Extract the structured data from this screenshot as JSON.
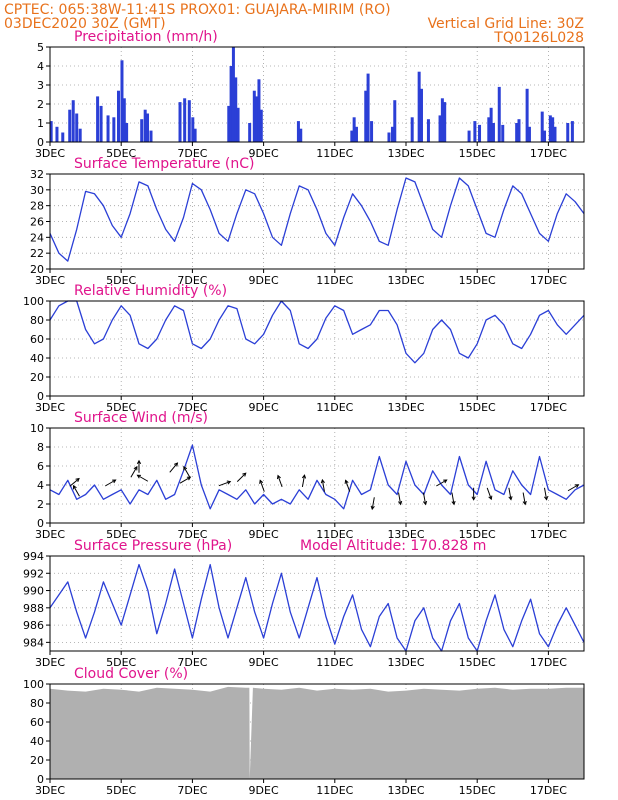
{
  "header": {
    "left_line1": "CPTEC:   065:38W-11:41S   PROX01: GUAJARA-MIRIM (RO)",
    "left_line2": "03DEC2020 30Z (GMT)",
    "right_line1": "Vertical Grid Line: 30Z",
    "right_line2": "TQ0126L028"
  },
  "colors": {
    "header": "#e8721c",
    "titles": "#e0148c",
    "series": "#2b3fd6",
    "cloud": "#b0b0b0",
    "wind_arrow": "#000000"
  },
  "x_axis": {
    "days": 15,
    "tick_days": [
      0,
      2,
      4,
      6,
      8,
      10,
      12,
      14
    ],
    "tick_labels": [
      "3DEC",
      "5DEC",
      "7DEC",
      "9DEC",
      "11DEC",
      "13DEC",
      "15DEC",
      "17DEC"
    ]
  },
  "chart_data": [
    {
      "type": "bar",
      "title": "Precipitation (mm/h)",
      "ylim": [
        0,
        5
      ],
      "yticks": [
        0,
        1,
        2,
        3,
        4,
        5
      ],
      "bars": [
        [
          0.05,
          1.1
        ],
        [
          0.3,
          0.8
        ],
        [
          0.55,
          0.5
        ],
        [
          0.85,
          1.7
        ],
        [
          1.0,
          2.2
        ],
        [
          1.15,
          1.5
        ],
        [
          1.3,
          0.7
        ],
        [
          2.05,
          2.4
        ],
        [
          2.2,
          1.9
        ],
        [
          2.5,
          1.4
        ],
        [
          2.75,
          1.3
        ],
        [
          2.95,
          2.7
        ],
        [
          3.1,
          4.3
        ],
        [
          3.2,
          2.3
        ],
        [
          3.3,
          1.0
        ],
        [
          3.95,
          1.2
        ],
        [
          4.1,
          1.7
        ],
        [
          4.2,
          1.5
        ],
        [
          4.35,
          0.6
        ],
        [
          5.6,
          2.1
        ],
        [
          5.8,
          2.3
        ],
        [
          6.0,
          2.2
        ],
        [
          6.15,
          1.3
        ],
        [
          6.25,
          0.7
        ],
        [
          7.7,
          1.9
        ],
        [
          7.8,
          4.0
        ],
        [
          7.9,
          5.0
        ],
        [
          8.0,
          3.4
        ],
        [
          8.1,
          1.8
        ],
        [
          8.6,
          1.0
        ],
        [
          8.8,
          2.7
        ],
        [
          8.9,
          2.4
        ],
        [
          9.0,
          3.3
        ],
        [
          9.1,
          1.7
        ],
        [
          10.7,
          1.1
        ],
        [
          10.8,
          0.7
        ],
        [
          13.0,
          0.6
        ],
        [
          13.1,
          1.3
        ],
        [
          13.2,
          0.8
        ],
        [
          13.6,
          2.7
        ],
        [
          13.7,
          3.6
        ],
        [
          13.85,
          1.1
        ],
        [
          14.6,
          0.5
        ],
        [
          14.75,
          0.8
        ],
        [
          14.85,
          2.2
        ],
        [
          15.6,
          1.3
        ],
        [
          15.9,
          3.7
        ],
        [
          16.0,
          2.8
        ],
        [
          16.3,
          1.2
        ],
        [
          16.8,
          1.4
        ],
        [
          16.9,
          2.3
        ],
        [
          17.0,
          2.1
        ],
        [
          18.05,
          0.6
        ],
        [
          18.3,
          1.1
        ],
        [
          18.5,
          0.9
        ],
        [
          18.9,
          1.3
        ],
        [
          19.0,
          1.8
        ],
        [
          19.1,
          1.0
        ],
        [
          19.35,
          2.9
        ],
        [
          19.5,
          0.9
        ],
        [
          20.1,
          1.0
        ],
        [
          20.2,
          1.2
        ],
        [
          20.55,
          2.8
        ],
        [
          20.65,
          0.8
        ],
        [
          21.2,
          1.6
        ],
        [
          21.3,
          0.6
        ],
        [
          21.55,
          1.4
        ],
        [
          21.65,
          1.3
        ],
        [
          21.75,
          0.8
        ],
        [
          22.3,
          1.0
        ],
        [
          22.5,
          1.1
        ]
      ]
    },
    {
      "type": "line",
      "title": "Surface Temperature (nC)",
      "ylim": [
        20,
        32
      ],
      "yticks": [
        20,
        22,
        24,
        26,
        28,
        30,
        32
      ],
      "x": [
        0,
        0.25,
        0.5,
        0.75,
        1,
        1.25,
        1.5,
        1.75,
        2,
        2.25,
        2.5,
        2.75,
        3,
        3.25,
        3.5,
        3.75,
        4,
        4.25,
        4.5,
        4.75,
        5,
        5.25,
        5.5,
        5.75,
        6,
        6.25,
        6.5,
        6.75,
        7,
        7.25,
        7.5,
        7.75,
        8,
        8.25,
        8.5,
        8.75,
        9,
        9.25,
        9.5,
        9.75,
        10,
        10.25,
        10.5,
        10.75,
        11,
        11.25,
        11.5,
        11.75,
        12,
        12.25,
        12.5,
        12.75,
        13,
        13.25,
        13.5,
        13.75,
        14,
        14.25,
        14.5,
        14.75,
        15
      ],
      "values": [
        24.5,
        22.0,
        21.0,
        25.0,
        29.8,
        29.5,
        28.0,
        25.5,
        24.0,
        27.0,
        31.0,
        30.5,
        27.5,
        25.0,
        23.5,
        26.5,
        30.8,
        30.0,
        27.5,
        24.5,
        23.5,
        27.0,
        30.0,
        29.5,
        27.0,
        24.0,
        23.0,
        27.0,
        30.5,
        30.0,
        27.5,
        24.5,
        23.0,
        26.5,
        29.5,
        28.0,
        26.0,
        23.5,
        23.0,
        27.5,
        31.5,
        31.0,
        28.0,
        25.0,
        24.0,
        28.0,
        31.5,
        30.5,
        27.5,
        24.5,
        24.0,
        27.5,
        30.5,
        29.5,
        27.0,
        24.5,
        23.5,
        27.0,
        29.5,
        28.5,
        27.0
      ]
    },
    {
      "type": "line",
      "title": "Relative Humidity (%)",
      "ylim": [
        0,
        100
      ],
      "yticks": [
        0,
        20,
        40,
        60,
        80,
        100
      ],
      "x": [
        0,
        0.25,
        0.5,
        0.75,
        1,
        1.25,
        1.5,
        1.75,
        2,
        2.25,
        2.5,
        2.75,
        3,
        3.25,
        3.5,
        3.75,
        4,
        4.25,
        4.5,
        4.75,
        5,
        5.25,
        5.5,
        5.75,
        6,
        6.25,
        6.5,
        6.75,
        7,
        7.25,
        7.5,
        7.75,
        8,
        8.25,
        8.5,
        8.75,
        9,
        9.25,
        9.5,
        9.75,
        10,
        10.25,
        10.5,
        10.75,
        11,
        11.25,
        11.5,
        11.75,
        12,
        12.25,
        12.5,
        12.75,
        13,
        13.25,
        13.5,
        13.75,
        14,
        14.25,
        14.5,
        14.75,
        15
      ],
      "values": [
        80,
        95,
        100,
        100,
        70,
        55,
        60,
        80,
        95,
        85,
        55,
        50,
        60,
        80,
        95,
        90,
        55,
        50,
        60,
        80,
        95,
        92,
        60,
        55,
        65,
        85,
        100,
        90,
        55,
        50,
        60,
        82,
        95,
        90,
        65,
        70,
        75,
        90,
        90,
        75,
        45,
        35,
        45,
        70,
        80,
        70,
        45,
        40,
        55,
        80,
        85,
        75,
        55,
        50,
        65,
        85,
        90,
        75,
        65,
        75,
        85
      ]
    },
    {
      "type": "line",
      "title": "Surface Wind (m/s)",
      "ylim": [
        0,
        10
      ],
      "yticks": [
        0,
        2,
        4,
        6,
        8,
        10
      ],
      "x": [
        0,
        0.25,
        0.5,
        0.75,
        1,
        1.25,
        1.5,
        1.75,
        2,
        2.25,
        2.5,
        2.75,
        3,
        3.25,
        3.5,
        3.75,
        4,
        4.25,
        4.5,
        4.75,
        5,
        5.25,
        5.5,
        5.75,
        6,
        6.25,
        6.5,
        6.75,
        7,
        7.25,
        7.5,
        7.75,
        8,
        8.25,
        8.5,
        8.75,
        9,
        9.25,
        9.5,
        9.75,
        10,
        10.25,
        10.5,
        10.75,
        11,
        11.25,
        11.5,
        11.75,
        12,
        12.25,
        12.5,
        12.75,
        13,
        13.25,
        13.5,
        13.75,
        14,
        14.25,
        14.5,
        14.75,
        15
      ],
      "values": [
        3.5,
        3.0,
        4.5,
        2.5,
        3.0,
        4.0,
        2.5,
        3.0,
        3.5,
        2.0,
        3.5,
        3.0,
        4.5,
        2.5,
        3.0,
        5.5,
        8.2,
        4.0,
        1.5,
        3.5,
        3.0,
        2.5,
        3.5,
        2.0,
        3.0,
        2.0,
        2.5,
        2.0,
        3.5,
        2.5,
        4.5,
        3.0,
        2.5,
        1.5,
        4.5,
        3.0,
        3.5,
        7.0,
        4.0,
        3.0,
        6.5,
        4.0,
        3.0,
        5.5,
        4.0,
        3.0,
        7.0,
        4.0,
        3.0,
        6.5,
        3.5,
        3.0,
        5.5,
        4.0,
        3.0,
        7.0,
        3.5,
        3.0,
        2.5,
        3.5,
        4.0
      ],
      "wind_vectors": [
        [
          0.6,
          4.0,
          50
        ],
        [
          0.8,
          3.0,
          -30
        ],
        [
          1.6,
          4.0,
          60
        ],
        [
          2.3,
          5.0,
          30
        ],
        [
          2.5,
          5.5,
          0
        ],
        [
          2.7,
          4.5,
          -60
        ],
        [
          3.4,
          5.5,
          40
        ],
        [
          3.7,
          4.3,
          60
        ],
        [
          3.9,
          5.0,
          -30
        ],
        [
          4.8,
          4.0,
          70
        ],
        [
          5.3,
          4.5,
          45
        ],
        [
          6.0,
          3.5,
          -20
        ],
        [
          6.5,
          4.0,
          -20
        ],
        [
          7.1,
          4.0,
          10
        ],
        [
          7.7,
          3.5,
          -10
        ],
        [
          8.4,
          3.5,
          -20
        ],
        [
          9.1,
          2.5,
          -170
        ],
        [
          9.8,
          3.0,
          170
        ],
        [
          10.5,
          3.0,
          170
        ],
        [
          10.9,
          4.0,
          60
        ],
        [
          11.3,
          3.0,
          170
        ],
        [
          11.9,
          3.5,
          180
        ],
        [
          12.3,
          3.5,
          160
        ],
        [
          12.9,
          3.5,
          170
        ],
        [
          13.3,
          3.0,
          170
        ],
        [
          13.9,
          3.5,
          170
        ],
        [
          14.6,
          3.5,
          60
        ]
      ]
    },
    {
      "type": "line",
      "title": "Surface Pressure (hPa)",
      "subtitle": "Model Altitude: 170.828  m",
      "ylim": [
        983,
        994
      ],
      "yticks": [
        984,
        986,
        988,
        990,
        992,
        994
      ],
      "x": [
        0,
        0.25,
        0.5,
        0.75,
        1,
        1.25,
        1.5,
        1.75,
        2,
        2.25,
        2.5,
        2.75,
        3,
        3.25,
        3.5,
        3.75,
        4,
        4.25,
        4.5,
        4.75,
        5,
        5.25,
        5.5,
        5.75,
        6,
        6.25,
        6.5,
        6.75,
        7,
        7.25,
        7.5,
        7.75,
        8,
        8.25,
        8.5,
        8.75,
        9,
        9.25,
        9.5,
        9.75,
        10,
        10.25,
        10.5,
        10.75,
        11,
        11.25,
        11.5,
        11.75,
        12,
        12.25,
        12.5,
        12.75,
        13,
        13.25,
        13.5,
        13.75,
        14,
        14.25,
        14.5,
        14.75,
        15
      ],
      "values": [
        988.0,
        989.5,
        991.0,
        987.5,
        984.5,
        987.5,
        991.0,
        988.5,
        986.0,
        989.5,
        993.0,
        990.0,
        985.0,
        988.5,
        992.5,
        988.5,
        984.5,
        989.0,
        993.0,
        988.0,
        984.5,
        988.0,
        991.5,
        987.5,
        984.5,
        988.5,
        992.0,
        987.5,
        984.5,
        988.0,
        991.5,
        987.0,
        983.8,
        987.0,
        989.5,
        985.5,
        983.5,
        987.0,
        988.5,
        984.5,
        983.0,
        986.5,
        988.0,
        984.5,
        983.0,
        986.5,
        988.5,
        984.5,
        983.0,
        986.5,
        989.5,
        985.5,
        983.5,
        986.5,
        989.0,
        985.0,
        983.5,
        986.0,
        988.0,
        986.0,
        984.0
      ]
    },
    {
      "type": "area",
      "title": "Cloud Cover (%)",
      "ylim": [
        0,
        100
      ],
      "yticks": [
        0,
        20,
        40,
        60,
        80,
        100
      ],
      "x": [
        0,
        0.5,
        1,
        1.5,
        2,
        2.5,
        3,
        3.5,
        4,
        4.5,
        5,
        5.5,
        5.6,
        5.61,
        5.7,
        6,
        6.5,
        7,
        7.5,
        8,
        8.5,
        9,
        9.5,
        10,
        10.5,
        11,
        11.5,
        12,
        12.5,
        13,
        13.5,
        14,
        14.5,
        15
      ],
      "values": [
        95,
        93,
        92,
        95,
        94,
        92,
        96,
        95,
        94,
        92,
        97,
        96,
        96,
        0,
        96,
        95,
        94,
        96,
        93,
        95,
        94,
        95,
        92,
        93,
        95,
        94,
        93,
        95,
        96,
        94,
        95,
        95,
        96,
        96
      ]
    }
  ]
}
